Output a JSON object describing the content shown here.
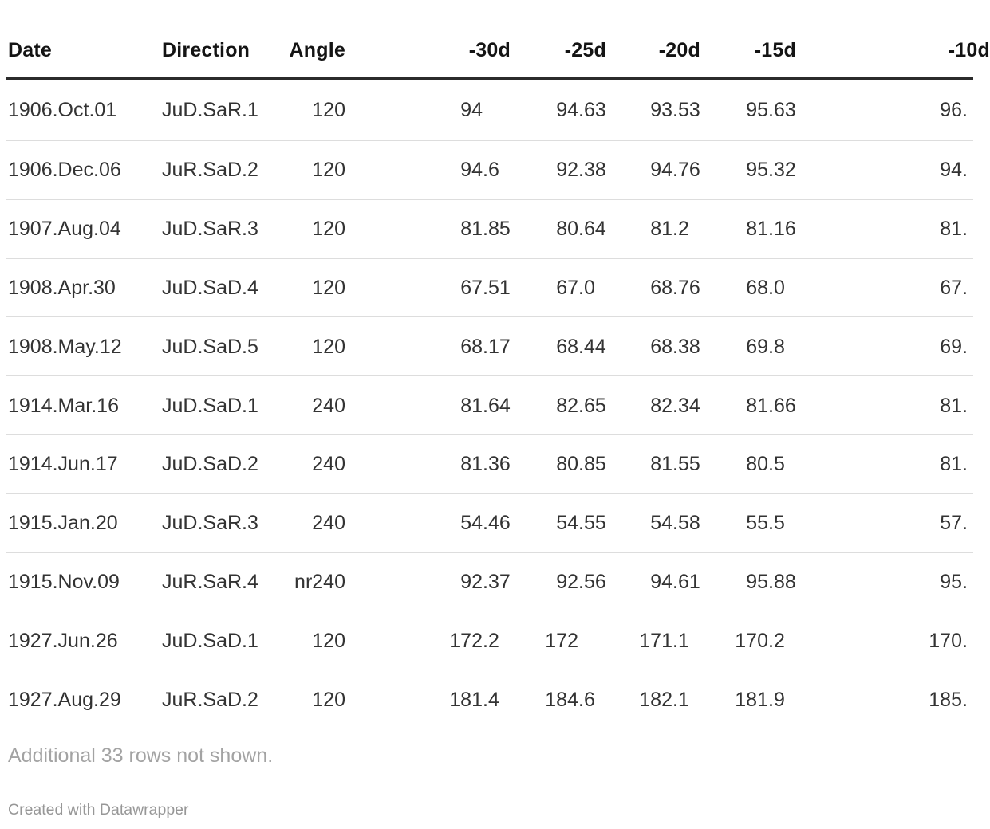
{
  "chart_data": {
    "type": "table",
    "columns": [
      "Date",
      "Direction",
      "Angle",
      "-30d",
      "-25d",
      "-20d",
      "-15d",
      "-10d"
    ],
    "column_align": [
      "left",
      "left",
      "right",
      "decimal",
      "decimal",
      "decimal",
      "decimal",
      "decimal"
    ],
    "last_column_truncated": true,
    "rows": [
      [
        "1906.Oct.01",
        "JuD.SaR.1",
        "120",
        "94",
        "94.63",
        "93.53",
        "95.63",
        "96."
      ],
      [
        "1906.Dec.06",
        "JuR.SaD.2",
        "120",
        "94.6",
        "92.38",
        "94.76",
        "95.32",
        "94."
      ],
      [
        "1907.Aug.04",
        "JuD.SaR.3",
        "120",
        "81.85",
        "80.64",
        "81.2",
        "81.16",
        "81."
      ],
      [
        "1908.Apr.30",
        "JuD.SaD.4",
        "120",
        "67.51",
        "67.0",
        "68.76",
        "68.0",
        "67."
      ],
      [
        "1908.May.12",
        "JuD.SaD.5",
        "120",
        "68.17",
        "68.44",
        "68.38",
        "69.8",
        "69."
      ],
      [
        "1914.Mar.16",
        "JuD.SaD.1",
        "240",
        "81.64",
        "82.65",
        "82.34",
        "81.66",
        "81."
      ],
      [
        "1914.Jun.17",
        "JuD.SaD.2",
        "240",
        "81.36",
        "80.85",
        "81.55",
        "80.5",
        "81."
      ],
      [
        "1915.Jan.20",
        "JuD.SaR.3",
        "240",
        "54.46",
        "54.55",
        "54.58",
        "55.5",
        "57."
      ],
      [
        "1915.Nov.09",
        "JuR.SaR.4",
        "nr240",
        "92.37",
        "92.56",
        "94.61",
        "95.88",
        "95."
      ],
      [
        "1927.Jun.26",
        "JuD.SaD.1",
        "120",
        "172.2",
        "172",
        "171.1",
        "170.2",
        "170."
      ],
      [
        "1927.Aug.29",
        "JuR.SaD.2",
        "120",
        "181.4",
        "184.6",
        "182.1",
        "181.9",
        "185."
      ]
    ],
    "notes": "Additional 33 rows not shown.",
    "attribution": "Created with Datawrapper"
  },
  "colors": {
    "background": "#ffffff",
    "header_text": "#141414",
    "body_text": "#333333",
    "header_rule": "#2b2b2b",
    "row_divider": "#dddddd",
    "footnote_text": "#a3a3a3",
    "attribution_text": "#979797"
  }
}
